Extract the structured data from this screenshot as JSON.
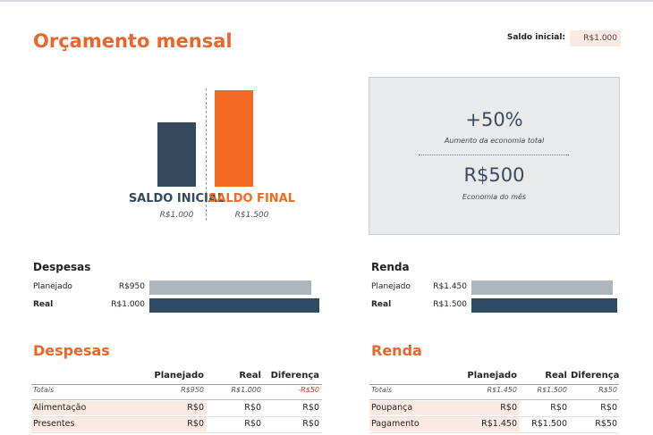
{
  "header": {
    "title": "Orçamento mensal",
    "saldo_label": "Saldo inicial:",
    "saldo_value": "R$1.000"
  },
  "chart_data": [
    {
      "type": "bar",
      "categories": [
        "SALDO INICIAL",
        "SALDO FINAL"
      ],
      "values": [
        1000,
        1500
      ],
      "value_labels": [
        "R$1.000",
        "R$1.500"
      ],
      "colors": [
        "#34495e",
        "#f26a21"
      ]
    },
    {
      "type": "hbar",
      "title": "Despesas",
      "categories": [
        "Planejado",
        "Real"
      ],
      "values": [
        950,
        1000
      ],
      "value_labels": [
        "R$950",
        "R$1.000"
      ],
      "colors": [
        "#adb5bd",
        "#2f4a63"
      ]
    },
    {
      "type": "hbar",
      "title": "Renda",
      "categories": [
        "Planejado",
        "Real"
      ],
      "values": [
        1450,
        1500
      ],
      "value_labels": [
        "R$1.450",
        "R$1.500"
      ],
      "colors": [
        "#adb5bd",
        "#2f4a63"
      ]
    }
  ],
  "kpis": [
    {
      "value": "+50%",
      "label": "Aumento da economia total"
    },
    {
      "value": "R$500",
      "label": "Economia do mês"
    }
  ],
  "tables": [
    {
      "title": "Despesas",
      "columns": [
        "Planejado",
        "Real",
        "Diferença"
      ],
      "totals": [
        "Totais",
        "R$950",
        "R$1.000",
        "-R$50"
      ],
      "rows": [
        [
          "Alimentação",
          "R$0",
          "R$0",
          "R$0"
        ],
        [
          "Presentes",
          "R$0",
          "R$0",
          "R$0"
        ]
      ]
    },
    {
      "title": "Renda",
      "columns": [
        "Planejado",
        "Real",
        "Diferença"
      ],
      "totals": [
        "Totais",
        "R$1.450",
        "R$1.500",
        "R$50"
      ],
      "rows": [
        [
          "Poupança",
          "R$0",
          "R$0",
          "R$0"
        ],
        [
          "Pagamento",
          "R$1.450",
          "R$1.500",
          "R$50"
        ]
      ]
    }
  ]
}
